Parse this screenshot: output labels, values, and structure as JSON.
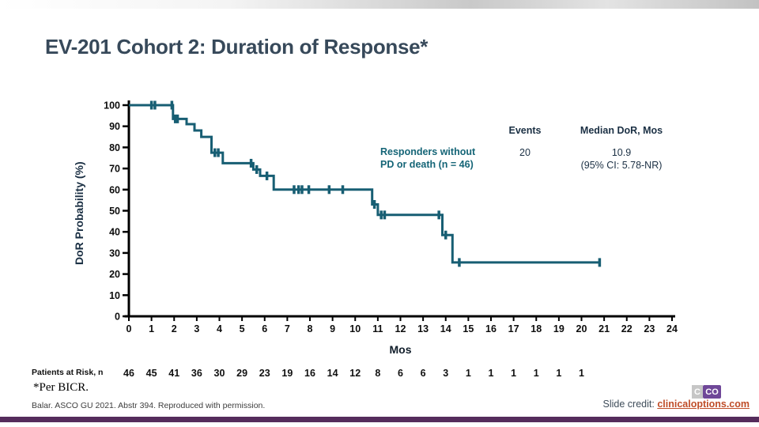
{
  "page": {
    "title": "EV-201 Cohort 2: Duration of Response*",
    "footnote": "*Per BICR.",
    "reference": "Balar. ASCO GU 2021. Abstr 394. Reproduced with permission.",
    "slide_credit_label": "Slide credit:",
    "slide_credit_link": "clinicaloptions.com",
    "logo": {
      "part1": "C",
      "part2": "CO"
    }
  },
  "colors": {
    "curve": "#175e73",
    "legend_teal": "#156577",
    "header_navy": "#1b3044",
    "title_slate": "#37495a",
    "link_orange": "#bf4d28",
    "bottom_bar_purple": "#552c5c",
    "logo_purple": "#6f4798",
    "axis_black": "#000000"
  },
  "chart_data": {
    "type": "line",
    "subtype": "kaplan-meier-step",
    "xlabel": "Mos",
    "ylabel": "DoR Probability (%)",
    "xlim": [
      0,
      24
    ],
    "ylim": [
      0,
      100
    ],
    "x_ticks": [
      0,
      1,
      2,
      3,
      4,
      5,
      6,
      7,
      8,
      9,
      10,
      11,
      12,
      13,
      14,
      15,
      16,
      17,
      18,
      19,
      20,
      21,
      22,
      23,
      24
    ],
    "y_ticks": [
      0,
      10,
      20,
      30,
      40,
      50,
      60,
      70,
      80,
      90,
      100
    ],
    "grid": false,
    "series": [
      {
        "name": "Responders without PD or death (n = 46)",
        "color": "#175e73",
        "points": [
          [
            0,
            100
          ],
          [
            1.95,
            100
          ],
          [
            1.95,
            93.5
          ],
          [
            2.55,
            93.5
          ],
          [
            2.55,
            91
          ],
          [
            2.9,
            91
          ],
          [
            2.9,
            88
          ],
          [
            3.2,
            88
          ],
          [
            3.2,
            85
          ],
          [
            3.65,
            85
          ],
          [
            3.65,
            77.5
          ],
          [
            4.15,
            77.5
          ],
          [
            4.15,
            72.5
          ],
          [
            5.5,
            72.5
          ],
          [
            5.5,
            69.5
          ],
          [
            5.8,
            69.5
          ],
          [
            5.8,
            66.5
          ],
          [
            6.4,
            66.5
          ],
          [
            6.4,
            60
          ],
          [
            10.75,
            60
          ],
          [
            10.75,
            53
          ],
          [
            11.0,
            53
          ],
          [
            11.0,
            48
          ],
          [
            13.85,
            48
          ],
          [
            13.85,
            38.5
          ],
          [
            14.3,
            38.5
          ],
          [
            14.3,
            25.5
          ],
          [
            20.8,
            25.5
          ]
        ],
        "censor_marks": [
          [
            1.0,
            100
          ],
          [
            1.15,
            100
          ],
          [
            1.9,
            100
          ],
          [
            2.05,
            93.5
          ],
          [
            2.15,
            93.5
          ],
          [
            3.8,
            77.5
          ],
          [
            3.95,
            77.5
          ],
          [
            5.4,
            72.5
          ],
          [
            5.65,
            69.5
          ],
          [
            6.1,
            66.5
          ],
          [
            7.3,
            60
          ],
          [
            7.5,
            60
          ],
          [
            7.65,
            60
          ],
          [
            7.95,
            60
          ],
          [
            8.85,
            60
          ],
          [
            9.45,
            60
          ],
          [
            10.85,
            53
          ],
          [
            11.15,
            48
          ],
          [
            11.3,
            48
          ],
          [
            13.7,
            48
          ],
          [
            14.0,
            38.5
          ],
          [
            14.6,
            25.5
          ],
          [
            20.8,
            25.5
          ]
        ]
      }
    ],
    "legend_table": {
      "headers": [
        "Events",
        "Median DoR, Mos"
      ],
      "rows": [
        {
          "label_lines": [
            "Responders without",
            "PD or death (n = 46)"
          ],
          "events": "20",
          "median_line1": "10.9",
          "median_line2": "(95% CI: 5.78-NR)"
        }
      ]
    },
    "risk_table": {
      "label": "Patients at Risk, n",
      "values": [
        46,
        45,
        41,
        36,
        30,
        29,
        23,
        19,
        16,
        14,
        12,
        8,
        6,
        6,
        3,
        1,
        1,
        1,
        1,
        1,
        1
      ]
    }
  }
}
